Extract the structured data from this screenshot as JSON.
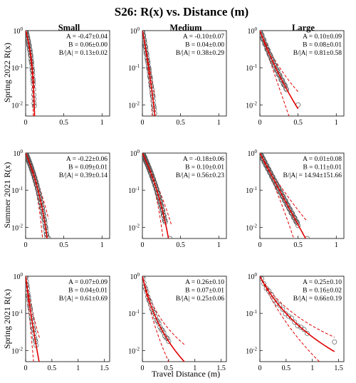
{
  "chart_data": {
    "type": "scatter",
    "title": "S26: R(x) vs. Distance (m)",
    "xlabel": "Travel Distance (m)",
    "column_titles": [
      "Small",
      "Medium",
      "Large"
    ],
    "row_labels": [
      "Spring 2022 R(x)",
      "Summer 2021 R(x)",
      "Spring 2021 R(x)"
    ],
    "y_scale": "log",
    "ylim": [
      0.005,
      1
    ],
    "y_ticks": [
      0.01,
      0.1,
      1
    ],
    "y_tick_base": "10",
    "y_tick_exponents": [
      "-2",
      "-1",
      "0"
    ],
    "colors": {
      "data": "#555555",
      "fit": "#e00000",
      "axis": "#000000"
    },
    "panels": [
      {
        "row": 0,
        "col": 0,
        "xlim": [
          0,
          1.1
        ],
        "x_ticks": [
          "0",
          "0.5",
          "1"
        ],
        "x_tick_values": [
          0,
          0.5,
          1
        ],
        "stats": [
          "A = -0.47±0.04",
          "B = 0.06±0.00",
          "B/|A| = 0.13±0.02"
        ],
        "A": -0.47,
        "B": 0.06,
        "A_lo": -0.51,
        "A_hi": -0.43,
        "B_lo": 0.055,
        "B_hi": 0.065,
        "fit_xmax": 0.12,
        "n_points": 45,
        "marker_xmax": 0.12,
        "last_point": [
          0.11,
          0.011
        ]
      },
      {
        "row": 0,
        "col": 1,
        "xlim": [
          0,
          1.1
        ],
        "x_ticks": [
          "0",
          "0.5",
          "1"
        ],
        "x_tick_values": [
          0,
          0.5,
          1
        ],
        "stats": [
          "A = -0.10±0.07",
          "B = 0.04±0.00",
          "B/|A| = 0.38±0.29"
        ],
        "A": -0.1,
        "B": 0.04,
        "A_lo": -0.17,
        "A_hi": -0.03,
        "B_lo": 0.037,
        "B_hi": 0.043,
        "fit_xmax": 0.17,
        "n_points": 40,
        "marker_xmax": 0.16,
        "last_point": null
      },
      {
        "row": 0,
        "col": 2,
        "xlim": [
          0,
          1.1
        ],
        "x_ticks": [
          "0",
          "0.5",
          "1"
        ],
        "x_tick_values": [
          0,
          0.5,
          1
        ],
        "stats": [
          "A = 0.10±0.09",
          "B = 0.08±0.01",
          "B/|A| = 0.81±0.58"
        ],
        "A": 0.1,
        "B": 0.08,
        "A_lo": 0.01,
        "A_hi": 0.19,
        "B_lo": 0.07,
        "B_hi": 0.09,
        "fit_xmax": 0.5,
        "n_points": 45,
        "marker_xmax": 0.35,
        "last_point": [
          0.5,
          0.01
        ]
      },
      {
        "row": 1,
        "col": 0,
        "xlim": [
          0,
          1.1
        ],
        "x_ticks": [
          "0",
          "0.5",
          "1"
        ],
        "x_tick_values": [
          0,
          0.5,
          1
        ],
        "stats": [
          "A = -0.22±0.06",
          "B = 0.09±0.01",
          "B/|A| = 0.39±0.14"
        ],
        "A": -0.22,
        "B": 0.09,
        "A_lo": -0.28,
        "A_hi": -0.16,
        "B_lo": 0.08,
        "B_hi": 0.1,
        "fit_xmax": 0.3,
        "n_points": 80,
        "marker_xmax": 0.28,
        "last_point": [
          0.3,
          0.005
        ]
      },
      {
        "row": 1,
        "col": 1,
        "xlim": [
          0,
          1.1
        ],
        "x_ticks": [
          "0",
          "0.5",
          "1"
        ],
        "x_tick_values": [
          0,
          0.5,
          1
        ],
        "stats": [
          "A = -0.18±0.06",
          "B = 0.10±0.01",
          "B/|A| = 0.56±0.23"
        ],
        "A": -0.18,
        "B": 0.1,
        "A_lo": -0.24,
        "A_hi": -0.12,
        "B_lo": 0.09,
        "B_hi": 0.11,
        "fit_xmax": 0.38,
        "n_points": 80,
        "marker_xmax": 0.3,
        "last_point": [
          0.36,
          0.005
        ]
      },
      {
        "row": 1,
        "col": 2,
        "xlim": [
          0,
          1.1
        ],
        "x_ticks": [
          "0",
          "0.5",
          "1"
        ],
        "x_tick_values": [
          0,
          0.5,
          1
        ],
        "stats": [
          "A = 0.01±0.08",
          "B = 0.11±0.01",
          "B/|A| = 14.94±151.66"
        ],
        "A": 0.01,
        "B": 0.11,
        "A_lo": -0.07,
        "A_hi": 0.09,
        "B_lo": 0.1,
        "B_hi": 0.12,
        "fit_xmax": 0.62,
        "n_points": 70,
        "marker_xmax": 0.5,
        "last_point": [
          0.62,
          0.005
        ]
      },
      {
        "row": 2,
        "col": 0,
        "xlim": [
          0,
          1.6
        ],
        "x_ticks": [
          "0",
          "0.5",
          "1",
          "1.5"
        ],
        "x_tick_values": [
          0,
          0.5,
          1,
          1.5
        ],
        "stats": [
          "A = 0.07±0.09",
          "B = 0.04±0.01",
          "B/|A| = 0.61±0.69"
        ],
        "A": 0.07,
        "B": 0.04,
        "A_lo": -0.02,
        "A_hi": 0.16,
        "B_lo": 0.03,
        "B_hi": 0.05,
        "fit_xmax": 0.27,
        "n_points": 25,
        "marker_xmax": 0.2,
        "last_point": [
          0.27,
          0.004
        ]
      },
      {
        "row": 2,
        "col": 1,
        "xlim": [
          0,
          1.6
        ],
        "x_ticks": [
          "0",
          "0.5",
          "1",
          "1.5"
        ],
        "x_tick_values": [
          0,
          0.5,
          1,
          1.5
        ],
        "stats": [
          "A = 0.26±0.10",
          "B = 0.07±0.01",
          "B/|A| = 0.25±0.06"
        ],
        "A": 0.26,
        "B": 0.07,
        "A_lo": 0.16,
        "A_hi": 0.36,
        "B_lo": 0.06,
        "B_hi": 0.08,
        "fit_xmax": 0.8,
        "n_points": 25,
        "marker_xmax": 0.5,
        "last_point": [
          0.8,
          0.004
        ]
      },
      {
        "row": 2,
        "col": 2,
        "xlim": [
          0,
          1.6
        ],
        "x_ticks": [
          "0",
          "0.5",
          "1",
          "1.5"
        ],
        "x_tick_values": [
          0,
          0.5,
          1,
          1.5
        ],
        "stats": [
          "A = 0.25±0.10",
          "B = 0.16±0.02",
          "B/|A| = 0.66±0.19"
        ],
        "A": 0.25,
        "B": 0.16,
        "A_lo": 0.15,
        "A_hi": 0.35,
        "B_lo": 0.14,
        "B_hi": 0.18,
        "fit_xmax": 1.42,
        "n_points": 18,
        "marker_xmax": 0.9,
        "last_point": [
          1.42,
          0.017
        ]
      }
    ]
  }
}
